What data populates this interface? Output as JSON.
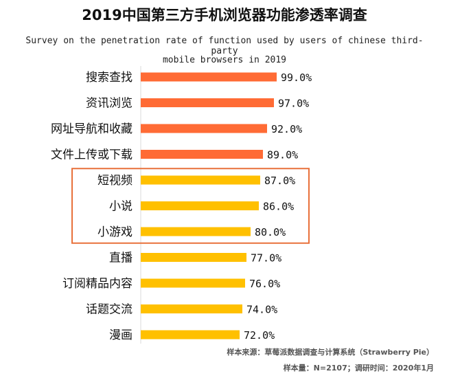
{
  "title": "2019中国第三方手机浏览器功能渗透率调查",
  "subtitle_en_line1": "Survey on the penetration rate of function used by users of chinese third-party",
  "subtitle_en_line2": "mobile browsers in 2019",
  "source_line1": "样本来源：草莓派数据调查与计算系统（Strawberry Pie）",
  "source_line2": "样本量：N=2107；调研时间：2020年1月",
  "colors": {
    "orange": "#FF6B35",
    "yellow": "#FFC000",
    "highlight_box": "#E8703A"
  },
  "chart_data": {
    "type": "bar",
    "orientation": "horizontal",
    "categories": [
      "搜索查找",
      "资讯浏览",
      "网址导航和收藏",
      "文件上传或下载",
      "短视频",
      "小说",
      "小游戏",
      "直播",
      "订阅精品内容",
      "话题交流",
      "漫画"
    ],
    "values": [
      99.0,
      97.0,
      92.0,
      89.0,
      87.0,
      86.0,
      80.0,
      77.0,
      76.0,
      74.0,
      72.0
    ],
    "value_labels": [
      "99.0%",
      "97.0%",
      "92.0%",
      "89.0%",
      "87.0%",
      "86.0%",
      "80.0%",
      "77.0%",
      "76.0%",
      "74.0%",
      "72.0%"
    ],
    "bar_colors": [
      "orange",
      "orange",
      "orange",
      "orange",
      "yellow",
      "yellow",
      "yellow",
      "yellow",
      "yellow",
      "yellow",
      "yellow"
    ],
    "highlighted_categories": [
      "短视频",
      "小说",
      "小游戏"
    ],
    "xlim": [
      0,
      100
    ],
    "grid": false,
    "legend": "none"
  }
}
